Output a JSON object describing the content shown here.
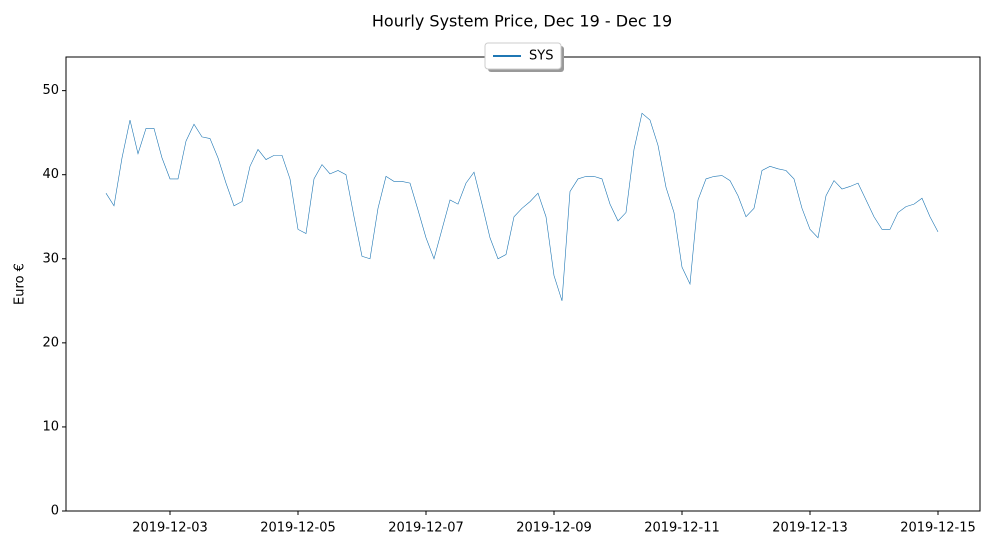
{
  "chart_data": {
    "type": "line",
    "title": "Hourly System Price, Dec 19 - Dec 19",
    "ylabel": "Euro €",
    "legend": "upper center",
    "xlim": [
      "2019-12-01T09:00",
      "2019-12-15T15:45"
    ],
    "xticks": [
      "2019-12-03",
      "2019-12-05",
      "2019-12-07",
      "2019-12-09",
      "2019-12-11",
      "2019-12-13",
      "2019-12-15"
    ],
    "ylim": [
      0,
      54
    ],
    "yticks": [
      0,
      10,
      20,
      30,
      40,
      50
    ],
    "x": [
      "2019-12-02T00:00",
      "2019-12-02T03:00",
      "2019-12-02T06:00",
      "2019-12-02T09:00",
      "2019-12-02T12:00",
      "2019-12-02T15:00",
      "2019-12-02T18:00",
      "2019-12-02T21:00",
      "2019-12-03T00:00",
      "2019-12-03T03:00",
      "2019-12-03T06:00",
      "2019-12-03T09:00",
      "2019-12-03T12:00",
      "2019-12-03T15:00",
      "2019-12-03T18:00",
      "2019-12-03T21:00",
      "2019-12-04T00:00",
      "2019-12-04T03:00",
      "2019-12-04T06:00",
      "2019-12-04T09:00",
      "2019-12-04T12:00",
      "2019-12-04T15:00",
      "2019-12-04T18:00",
      "2019-12-04T21:00",
      "2019-12-05T00:00",
      "2019-12-05T03:00",
      "2019-12-05T06:00",
      "2019-12-05T09:00",
      "2019-12-05T12:00",
      "2019-12-05T15:00",
      "2019-12-05T18:00",
      "2019-12-05T21:00",
      "2019-12-06T00:00",
      "2019-12-06T03:00",
      "2019-12-06T06:00",
      "2019-12-06T09:00",
      "2019-12-06T12:00",
      "2019-12-06T15:00",
      "2019-12-06T18:00",
      "2019-12-06T21:00",
      "2019-12-07T00:00",
      "2019-12-07T03:00",
      "2019-12-07T06:00",
      "2019-12-07T09:00",
      "2019-12-07T12:00",
      "2019-12-07T15:00",
      "2019-12-07T18:00",
      "2019-12-07T21:00",
      "2019-12-08T00:00",
      "2019-12-08T03:00",
      "2019-12-08T06:00",
      "2019-12-08T09:00",
      "2019-12-08T12:00",
      "2019-12-08T15:00",
      "2019-12-08T18:00",
      "2019-12-08T21:00",
      "2019-12-09T00:00",
      "2019-12-09T03:00",
      "2019-12-09T06:00",
      "2019-12-09T09:00",
      "2019-12-09T12:00",
      "2019-12-09T15:00",
      "2019-12-09T18:00",
      "2019-12-09T21:00",
      "2019-12-10T00:00",
      "2019-12-10T03:00",
      "2019-12-10T06:00",
      "2019-12-10T09:00",
      "2019-12-10T12:00",
      "2019-12-10T15:00",
      "2019-12-10T18:00",
      "2019-12-10T21:00",
      "2019-12-11T00:00",
      "2019-12-11T03:00",
      "2019-12-11T06:00",
      "2019-12-11T09:00",
      "2019-12-11T12:00",
      "2019-12-11T15:00",
      "2019-12-11T18:00",
      "2019-12-11T21:00",
      "2019-12-12T00:00",
      "2019-12-12T03:00",
      "2019-12-12T06:00",
      "2019-12-12T09:00",
      "2019-12-12T12:00",
      "2019-12-12T15:00",
      "2019-12-12T18:00",
      "2019-12-12T21:00",
      "2019-12-13T00:00",
      "2019-12-13T03:00",
      "2019-12-13T06:00",
      "2019-12-13T09:00",
      "2019-12-13T12:00",
      "2019-12-13T15:00",
      "2019-12-13T18:00",
      "2019-12-13T21:00",
      "2019-12-14T00:00",
      "2019-12-14T03:00",
      "2019-12-14T06:00",
      "2019-12-14T09:00",
      "2019-12-14T12:00",
      "2019-12-14T15:00",
      "2019-12-14T18:00",
      "2019-12-14T21:00",
      "2019-12-15T00:00"
    ],
    "series": [
      {
        "name": "SYS",
        "color": "#1f77b4",
        "values": [
          37.8,
          36.3,
          42,
          46.5,
          42.5,
          45.5,
          45.5,
          42,
          39.5,
          39.5,
          44,
          46,
          44.5,
          44.3,
          42,
          39,
          36.3,
          36.8,
          41,
          43,
          41.8,
          42.3,
          42.3,
          39.5,
          33.5,
          33,
          39.5,
          41.2,
          40.1,
          40.5,
          40,
          35,
          30.3,
          30,
          36,
          39.8,
          39.2,
          39.2,
          39,
          35.8,
          32.5,
          30,
          33.5,
          37,
          36.5,
          39,
          40.3,
          36.5,
          32.5,
          30,
          30.5,
          35,
          36,
          36.8,
          37.8,
          35,
          28,
          25,
          38,
          39.5,
          39.8,
          39.8,
          39.5,
          36.5,
          34.5,
          35.5,
          43,
          47.3,
          46.5,
          43.5,
          38.5,
          35.5,
          29,
          27,
          37,
          39.5,
          39.8,
          39.9,
          39.3,
          37.5,
          35,
          36,
          40.5,
          41,
          40.7,
          40.5,
          39.5,
          36,
          33.5,
          32.5,
          37.5,
          39.3,
          38.3,
          38.6,
          39,
          37,
          35,
          33.5,
          33.5,
          35.5,
          36.2,
          36.5,
          37.2,
          35,
          33.2
        ]
      }
    ]
  }
}
